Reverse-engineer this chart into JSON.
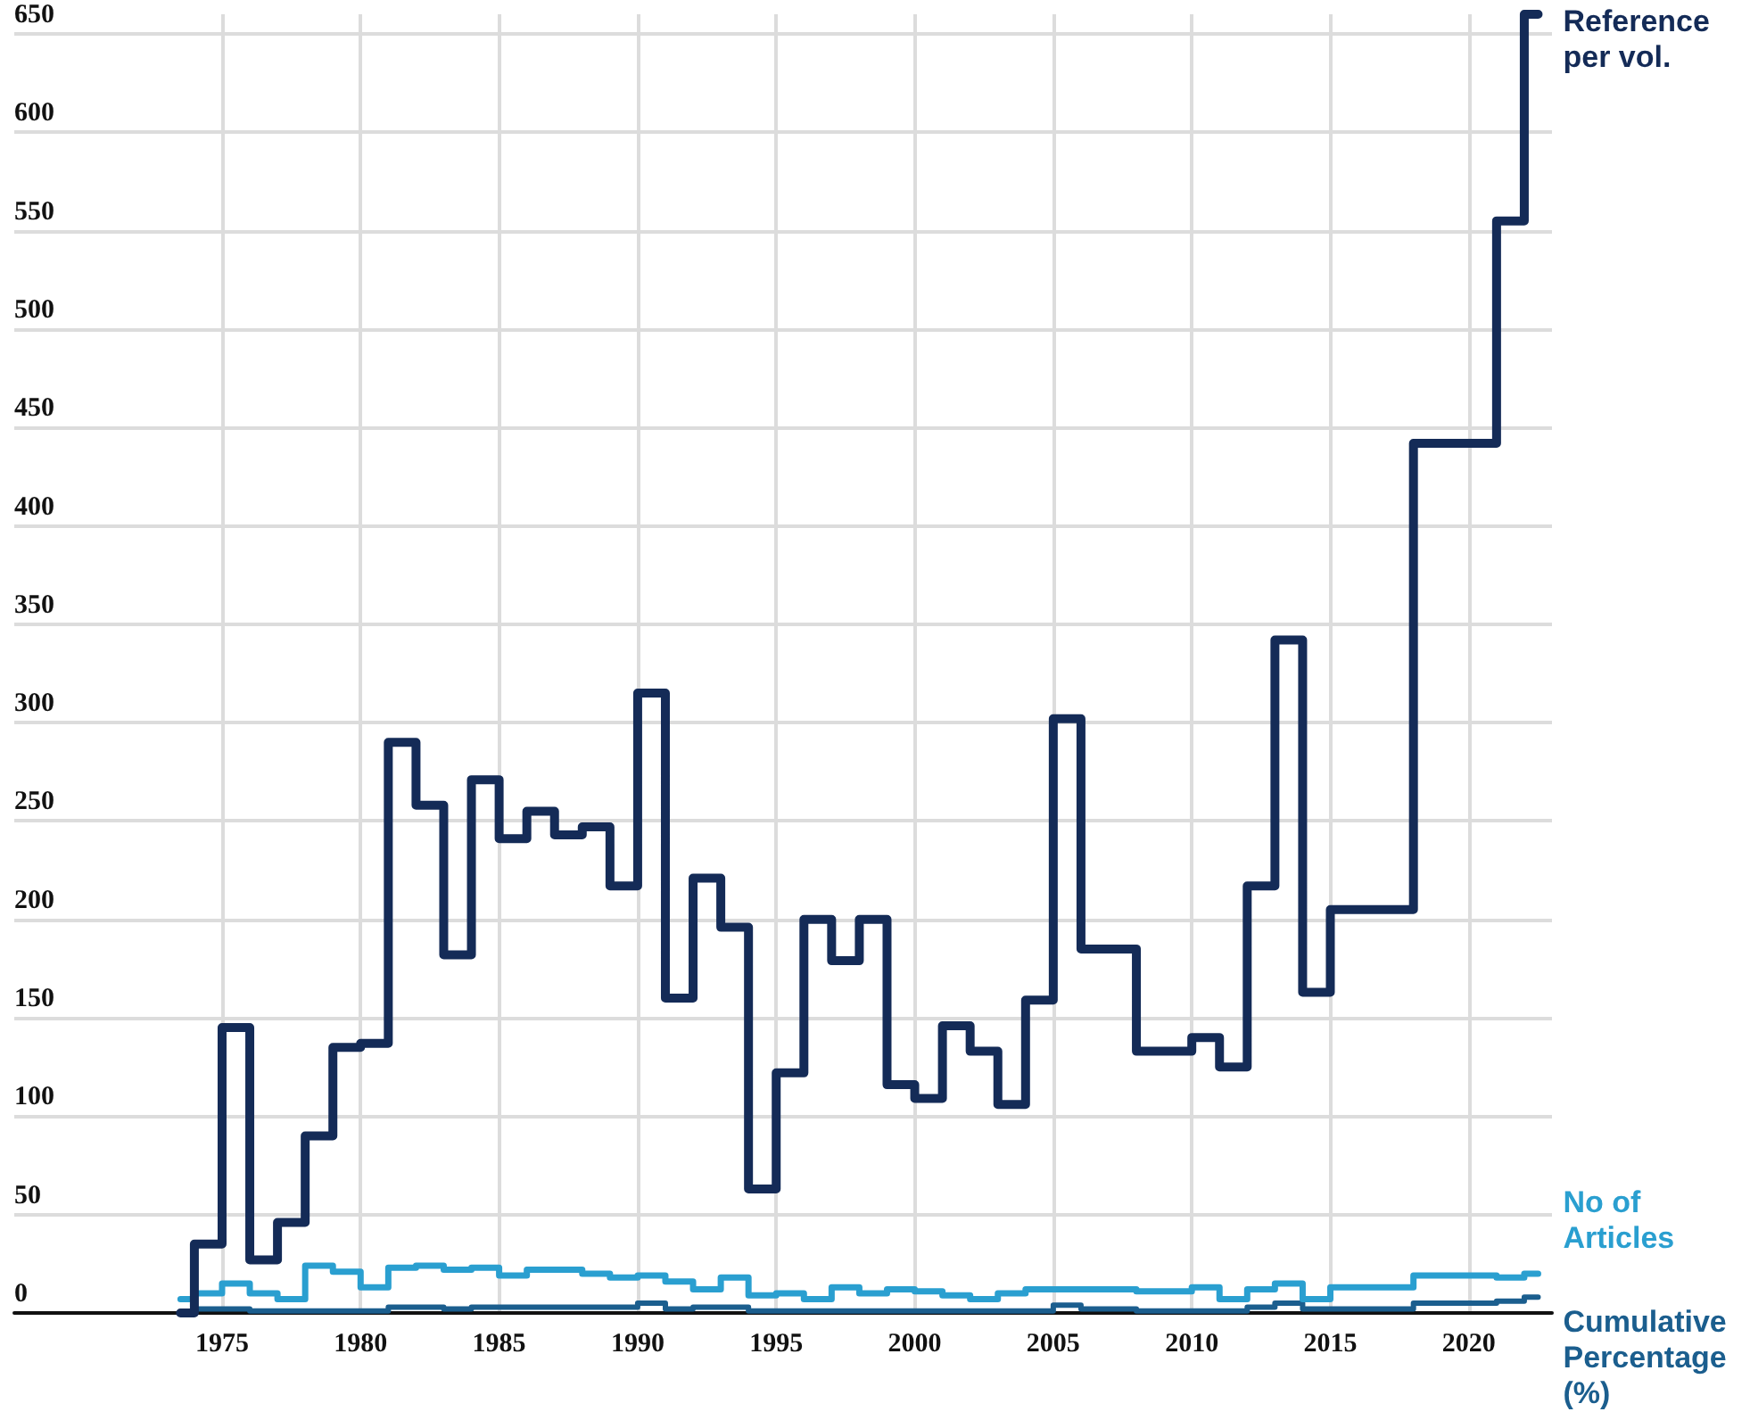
{
  "chart_data": {
    "type": "step",
    "x": [
      1973.5,
      1974.5,
      1975.5,
      1976.5,
      1977.5,
      1978.5,
      1979.5,
      1980.5,
      1981.5,
      1982.5,
      1983.5,
      1984.5,
      1985.5,
      1986.5,
      1987.5,
      1988.5,
      1989.5,
      1990.5,
      1991.5,
      1992.5,
      1993.5,
      1994.5,
      1995.5,
      1996.5,
      1997.5,
      1998.5,
      1999.5,
      2000.5,
      2001.5,
      2002.5,
      2003.5,
      2004.5,
      2005.5,
      2006.5,
      2007.5,
      2008.5,
      2009.5,
      2010.5,
      2011.5,
      2012.5,
      2013.5,
      2014.5,
      2015.5,
      2016.5,
      2017.5,
      2018.5,
      2019.5,
      2020.5,
      2021.5,
      2022.5
    ],
    "series": [
      {
        "name": "Reference per vol.",
        "color": "#142b57",
        "values": [
          0,
          35,
          145,
          27,
          46,
          90,
          135,
          137,
          290,
          258,
          182,
          271,
          241,
          255,
          243,
          247,
          217,
          315,
          160,
          221,
          196,
          63,
          122,
          200,
          179,
          200,
          116,
          109,
          146,
          133,
          106,
          159,
          302,
          185,
          185,
          133,
          133,
          140,
          125,
          217,
          342,
          163,
          205,
          205,
          205,
          442,
          442,
          442,
          555,
          660
        ]
      },
      {
        "name": "No of Articles",
        "color": "#2a9fd0",
        "values": [
          7,
          10,
          15,
          10,
          7,
          24,
          21,
          13,
          23,
          24,
          22,
          23,
          19,
          22,
          22,
          20,
          18,
          19,
          16,
          12,
          18,
          9,
          10,
          7,
          13,
          10,
          12,
          11,
          9,
          7,
          10,
          12,
          12,
          12,
          12,
          11,
          11,
          13,
          7,
          12,
          15,
          7,
          13,
          13,
          13,
          19,
          19,
          19,
          18,
          20
        ]
      },
      {
        "name": "Cumulative Percentage (%)",
        "color": "#1b5e8e",
        "values": [
          0,
          2,
          2,
          1,
          1,
          1,
          1,
          1,
          3,
          3,
          2,
          3,
          3,
          3,
          3,
          3,
          3,
          5,
          2,
          3,
          3,
          1,
          1,
          1,
          1,
          1,
          1,
          1,
          1,
          1,
          1,
          1,
          4,
          2,
          2,
          1,
          1,
          1,
          1,
          3,
          5,
          2,
          2,
          2,
          2,
          5,
          5,
          5,
          6,
          8
        ]
      }
    ],
    "xlim": [
      1967.5,
      2023
    ],
    "xticks": [
      1975,
      1980,
      1985,
      1990,
      1995,
      2000,
      2005,
      2010,
      2015,
      2020
    ],
    "ylim": [
      0,
      660
    ],
    "yticks": [
      0,
      50,
      100,
      150,
      200,
      250,
      300,
      350,
      400,
      450,
      500,
      550,
      600,
      650
    ],
    "grid": true,
    "legend": false,
    "line_style": "solid",
    "marker": "none"
  }
}
